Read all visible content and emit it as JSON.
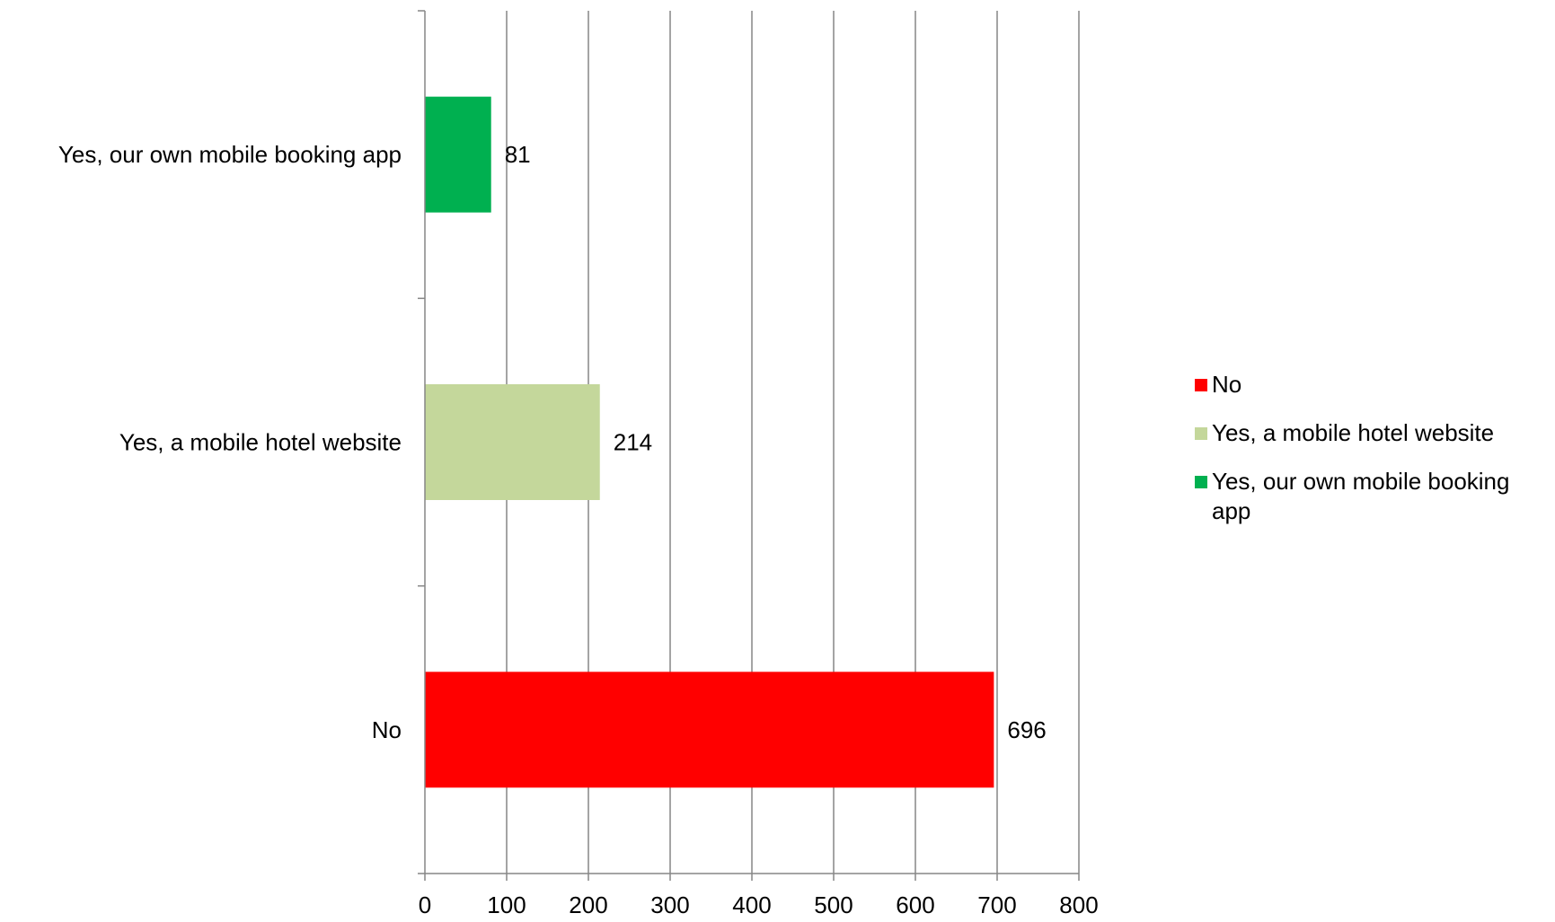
{
  "chart_data": {
    "type": "bar",
    "orientation": "horizontal",
    "categories": [
      "Yes, our own mobile booking app",
      "Yes, a mobile hotel website",
      "No"
    ],
    "values": [
      81,
      214,
      696
    ],
    "colors": [
      "#00b050",
      "#c4d79b",
      "#ff0000"
    ],
    "title": "",
    "xlabel": "",
    "ylabel": "",
    "xlim": [
      0,
      800
    ],
    "xticks": [
      "0",
      "100",
      "200",
      "300",
      "400",
      "500",
      "600",
      "700",
      "800"
    ],
    "grid": "vertical",
    "data_labels": [
      "81",
      "214",
      "696"
    ],
    "legend_position": "right",
    "legend": [
      {
        "label": "No",
        "color": "#ff0000"
      },
      {
        "label": "Yes, a mobile hotel website",
        "color": "#c4d79b"
      },
      {
        "label": "Yes, our own mobile booking app",
        "color": "#00b050"
      }
    ]
  }
}
